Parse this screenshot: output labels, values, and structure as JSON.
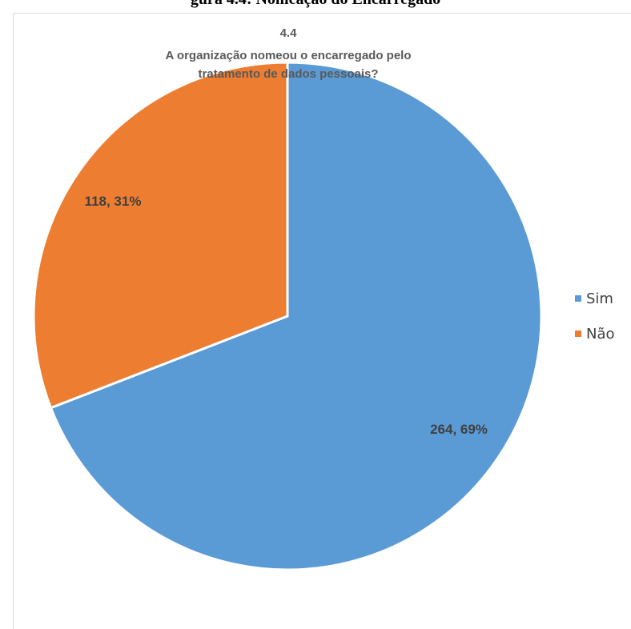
{
  "caption": "gura 4.4: Nomeação do Encarregado",
  "chart_data": {
    "type": "pie",
    "title_number": "4.4",
    "title_line1": "A organização nomeou o encarregado pelo",
    "title_line2": "tratamento de dados pessoais?",
    "categories": [
      "Sim",
      "Não"
    ],
    "values": [
      264,
      118
    ],
    "percentages": [
      "69%",
      "31%"
    ],
    "data_labels": [
      "264, 69%",
      "118, 31%"
    ],
    "colors": [
      "#5b9bd5",
      "#ed7d31"
    ],
    "legend_position": "right"
  }
}
